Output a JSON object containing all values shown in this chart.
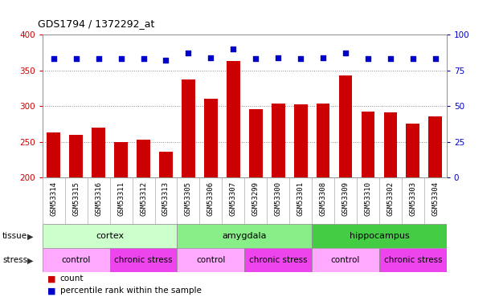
{
  "title": "GDS1794 / 1372292_at",
  "samples": [
    "GSM53314",
    "GSM53315",
    "GSM53316",
    "GSM53311",
    "GSM53312",
    "GSM53313",
    "GSM53305",
    "GSM53306",
    "GSM53307",
    "GSM53299",
    "GSM53300",
    "GSM53301",
    "GSM53308",
    "GSM53309",
    "GSM53310",
    "GSM53302",
    "GSM53303",
    "GSM53304"
  ],
  "counts": [
    263,
    260,
    270,
    250,
    253,
    236,
    337,
    310,
    363,
    296,
    304,
    302,
    304,
    343,
    292,
    291,
    275,
    286
  ],
  "percentiles": [
    83,
    83,
    83,
    83,
    83,
    82,
    87,
    84,
    90,
    83,
    84,
    83,
    84,
    87,
    83,
    83,
    83,
    83
  ],
  "bar_color": "#cc0000",
  "dot_color": "#0000cc",
  "ylim_left": [
    200,
    400
  ],
  "ylim_right": [
    0,
    100
  ],
  "yticks_left": [
    200,
    250,
    300,
    350,
    400
  ],
  "yticks_right": [
    0,
    25,
    50,
    75,
    100
  ],
  "tissue_groups": [
    {
      "label": "cortex",
      "start": 0,
      "end": 6,
      "color": "#ccffcc"
    },
    {
      "label": "amygdala",
      "start": 6,
      "end": 12,
      "color": "#88ee88"
    },
    {
      "label": "hippocampus",
      "start": 12,
      "end": 18,
      "color": "#44cc44"
    }
  ],
  "stress_groups": [
    {
      "label": "control",
      "start": 0,
      "end": 3,
      "color": "#ffaaff"
    },
    {
      "label": "chronic stress",
      "start": 3,
      "end": 6,
      "color": "#ee44ee"
    },
    {
      "label": "control",
      "start": 6,
      "end": 9,
      "color": "#ffaaff"
    },
    {
      "label": "chronic stress",
      "start": 9,
      "end": 12,
      "color": "#ee44ee"
    },
    {
      "label": "control",
      "start": 12,
      "end": 15,
      "color": "#ffaaff"
    },
    {
      "label": "chronic stress",
      "start": 15,
      "end": 18,
      "color": "#ee44ee"
    }
  ],
  "background_color": "#ffffff",
  "grid_color": "#888888",
  "label_color": "#333333",
  "tick_bg_color": "#cccccc"
}
